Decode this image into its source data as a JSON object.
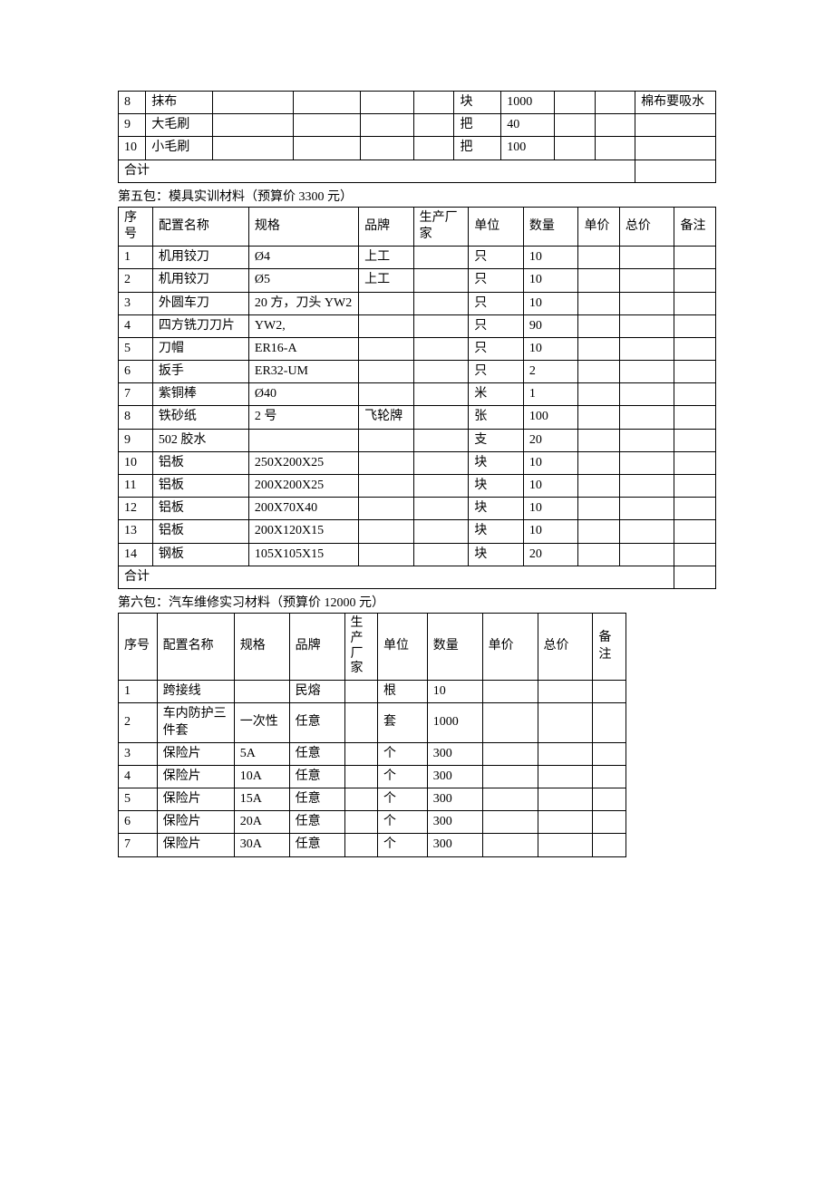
{
  "table4_fragment": {
    "columns": 11,
    "rows": [
      {
        "cells": [
          "8",
          "抹布",
          "",
          "",
          "",
          "",
          "块",
          "1000",
          "",
          "",
          "棉布要吸水"
        ]
      },
      {
        "cells": [
          "9",
          "大毛刷",
          "",
          "",
          "",
          "",
          "把",
          "40",
          "",
          "",
          ""
        ]
      },
      {
        "cells": [
          "10",
          "小毛刷",
          "",
          "",
          "",
          "",
          "把",
          "100",
          "",
          "",
          ""
        ]
      }
    ],
    "footer_label": "合计",
    "footer_span1": 10,
    "footer_span2": 1
  },
  "section5": {
    "title": "第五包：模具实训材料（预算价 3300 元）",
    "headers": [
      "序号",
      "配置名称",
      "规格",
      "品牌",
      "生产厂家",
      "单位",
      "数量",
      "单价",
      "总价",
      "备注"
    ],
    "rows": [
      {
        "cells": [
          "1",
          "机用铰刀",
          "Ø4",
          "上工",
          "",
          "只",
          "10",
          "",
          "",
          ""
        ]
      },
      {
        "cells": [
          "2",
          "机用铰刀",
          "Ø5",
          "上工",
          "",
          "只",
          "10",
          "",
          "",
          ""
        ]
      },
      {
        "cells": [
          "3",
          "外圆车刀",
          "20 方，刀头 YW2",
          "",
          "",
          "只",
          "10",
          "",
          "",
          ""
        ]
      },
      {
        "cells": [
          "4",
          "四方铣刀刀片",
          "YW2,",
          "",
          "",
          "只",
          "90",
          "",
          "",
          ""
        ]
      },
      {
        "cells": [
          "5",
          "刀帽",
          "ER16-A",
          "",
          "",
          "只",
          "10",
          "",
          "",
          ""
        ]
      },
      {
        "cells": [
          "6",
          "扳手",
          "ER32-UM",
          "",
          "",
          "只",
          "2",
          "",
          "",
          ""
        ]
      },
      {
        "cells": [
          "7",
          "紫铜棒",
          "Ø40",
          "",
          "",
          "米",
          "1",
          "",
          "",
          ""
        ]
      },
      {
        "cells": [
          "8",
          "铁砂纸",
          "2 号",
          "飞轮牌",
          "",
          "张",
          "100",
          "",
          "",
          ""
        ]
      },
      {
        "cells": [
          "9",
          "502 胶水",
          "",
          "",
          "",
          "支",
          "20",
          "",
          "",
          ""
        ]
      },
      {
        "cells": [
          "10",
          "铝板",
          "250X200X25",
          "",
          "",
          "块",
          "10",
          "",
          "",
          ""
        ]
      },
      {
        "cells": [
          "11",
          "铝板",
          "200X200X25",
          "",
          "",
          "块",
          "10",
          "",
          "",
          ""
        ]
      },
      {
        "cells": [
          "12",
          "铝板",
          "200X70X40",
          "",
          "",
          "块",
          "10",
          "",
          "",
          ""
        ]
      },
      {
        "cells": [
          "13",
          "铝板",
          "200X120X15",
          "",
          "",
          "块",
          "10",
          "",
          "",
          ""
        ]
      },
      {
        "cells": [
          "14",
          "钢板",
          "105X105X15",
          "",
          "",
          "块",
          "20",
          "",
          "",
          ""
        ]
      }
    ],
    "footer_label": "合计",
    "footer_span1": 9,
    "footer_span2": 1
  },
  "section6": {
    "title": "第六包：汽车维修实习材料（预算价 12000 元）",
    "headers": [
      "序号",
      "配置名称",
      "规格",
      "品牌",
      "生产厂家",
      "单位",
      "数量",
      "单价",
      "总价",
      "备注"
    ],
    "rows": [
      {
        "cells": [
          "1",
          "跨接线",
          "",
          "民熔",
          "",
          "根",
          "10",
          "",
          "",
          ""
        ]
      },
      {
        "cells": [
          "2",
          "车内防护三件套",
          "一次性",
          "任意",
          "",
          "套",
          "1000",
          "",
          "",
          ""
        ]
      },
      {
        "cells": [
          "3",
          "保险片",
          "5A",
          "任意",
          "",
          "个",
          "300",
          "",
          "",
          ""
        ]
      },
      {
        "cells": [
          "4",
          "保险片",
          "10A",
          "任意",
          "",
          "个",
          "300",
          "",
          "",
          ""
        ]
      },
      {
        "cells": [
          "5",
          "保险片",
          "15A",
          "任意",
          "",
          "个",
          "300",
          "",
          "",
          ""
        ]
      },
      {
        "cells": [
          "6",
          "保险片",
          "20A",
          "任意",
          "",
          "个",
          "300",
          "",
          "",
          ""
        ]
      },
      {
        "cells": [
          "7",
          "保险片",
          "30A",
          "任意",
          "",
          "个",
          "300",
          "",
          "",
          ""
        ]
      }
    ]
  },
  "table5_col_widths": [
    "5%",
    "14%",
    "16%",
    "8%",
    "8%",
    "8%",
    "8%",
    "6%",
    "8%",
    "6%"
  ],
  "table6_col_widths": [
    "7%",
    "14%",
    "10%",
    "10%",
    "6%",
    "9%",
    "10%",
    "10%",
    "10%",
    "6%"
  ],
  "table4_col_widths": [
    "4%",
    "10%",
    "12%",
    "10%",
    "8%",
    "6%",
    "7%",
    "8%",
    "6%",
    "6%",
    "12%"
  ]
}
